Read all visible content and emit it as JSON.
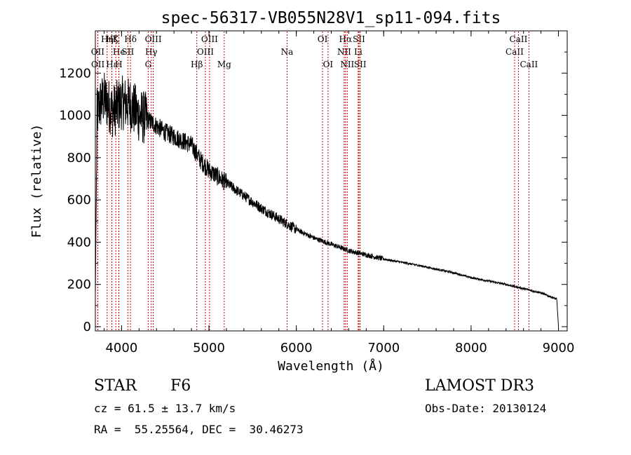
{
  "chart_data": {
    "type": "line",
    "title": "spec-56317-VB055N28V1_sp11-094.fits",
    "xlabel": "Wavelength (Å)",
    "ylabel": "Flux (relative)",
    "xlim": [
      3700,
      9100
    ],
    "ylim": [
      -20,
      1400
    ],
    "xticks": [
      4000,
      5000,
      6000,
      7000,
      8000,
      9000
    ],
    "yticks": [
      0,
      200,
      400,
      600,
      800,
      1000,
      1200
    ],
    "spectrum_anchors": [
      [
        3700,
        150
      ],
      [
        3720,
        1000
      ],
      [
        3750,
        1050
      ],
      [
        3800,
        1080
      ],
      [
        3850,
        1050
      ],
      [
        3900,
        1020
      ],
      [
        4000,
        1060
      ],
      [
        4100,
        1050
      ],
      [
        4200,
        1000
      ],
      [
        4300,
        980
      ],
      [
        4400,
        950
      ],
      [
        4500,
        920
      ],
      [
        4600,
        900
      ],
      [
        4700,
        880
      ],
      [
        4800,
        860
      ],
      [
        4900,
        790
      ],
      [
        5000,
        740
      ],
      [
        5200,
        680
      ],
      [
        5400,
        620
      ],
      [
        5600,
        560
      ],
      [
        5800,
        510
      ],
      [
        6000,
        460
      ],
      [
        6200,
        420
      ],
      [
        6400,
        390
      ],
      [
        6600,
        360
      ],
      [
        6800,
        340
      ],
      [
        7000,
        320
      ],
      [
        7400,
        290
      ],
      [
        7800,
        255
      ],
      [
        8000,
        232
      ],
      [
        8400,
        200
      ],
      [
        8800,
        160
      ],
      [
        8980,
        130
      ],
      [
        9000,
        5
      ]
    ],
    "spectral_lines": [
      {
        "label": "Hη",
        "x": 3835,
        "row": 1
      },
      {
        "label": "OII",
        "x": 3727,
        "row": 2
      },
      {
        "label": "OII",
        "x": 3729,
        "row": 3
      },
      {
        "label": "Hζ",
        "x": 3889,
        "row": 1
      },
      {
        "label": "He",
        "x": 3970,
        "row": 2
      },
      {
        "label": "K",
        "x": 3934,
        "row": 1
      },
      {
        "label": "H",
        "x": 3969,
        "row": 3
      },
      {
        "label": "Hε",
        "x": 3889,
        "row": 3
      },
      {
        "label": "SII",
        "x": 4072,
        "row": 2
      },
      {
        "label": "Hδ",
        "x": 4102,
        "row": 1
      },
      {
        "label": "OIII",
        "x": 4363,
        "row": 1
      },
      {
        "label": "Hγ",
        "x": 4340,
        "row": 2
      },
      {
        "label": "G",
        "x": 4305,
        "row": 3
      },
      {
        "label": "OIII",
        "x": 5007,
        "row": 1
      },
      {
        "label": "OIII",
        "x": 4959,
        "row": 2
      },
      {
        "label": "Hβ",
        "x": 4861,
        "row": 3
      },
      {
        "label": "Mg",
        "x": 5175,
        "row": 3
      },
      {
        "label": "Na",
        "x": 5894,
        "row": 2
      },
      {
        "label": "OI",
        "x": 6300,
        "row": 1
      },
      {
        "label": "OI",
        "x": 6363,
        "row": 3
      },
      {
        "label": "Hα",
        "x": 6563,
        "row": 1
      },
      {
        "label": "SII",
        "x": 6717,
        "row": 1
      },
      {
        "label": "NII",
        "x": 6548,
        "row": 2
      },
      {
        "label": "Li",
        "x": 6708,
        "row": 2
      },
      {
        "label": "NII",
        "x": 6583,
        "row": 3
      },
      {
        "label": "SII",
        "x": 6731,
        "row": 3
      },
      {
        "label": "CaII",
        "x": 8498,
        "row": 2
      },
      {
        "label": "CaII",
        "x": 8542,
        "row": 1
      },
      {
        "label": "CaII",
        "x": 8662,
        "row": 3
      }
    ]
  },
  "info": {
    "class_label": "STAR",
    "subclass": "F6",
    "survey": "LAMOST DR3",
    "cz": "cz = 61.5 ± 13.7 km/s",
    "obs_date": "Obs-Date: 20130124",
    "coords": "RA =  55.25564, DEC =  30.46273"
  },
  "colors": {
    "frame": "#000000",
    "spectrum": "#000000",
    "line_marker": "#cc0000"
  }
}
